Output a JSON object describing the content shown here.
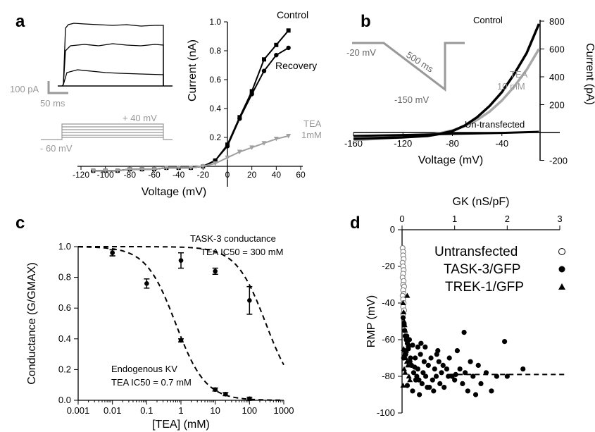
{
  "chart_data": [
    {
      "panel": "a",
      "type": "line",
      "xlabel": "Voltage (mV)",
      "ylabel": "Current (nA)",
      "xlim": [
        -120,
        60
      ],
      "ylim": [
        0,
        1.0
      ],
      "x_ticks": [
        "-120",
        "-100",
        "-80",
        "-60",
        "-40",
        "-20",
        "0",
        "20",
        "40",
        "60"
      ],
      "y_ticks": [
        "0.2",
        "0.4",
        "0.6",
        "0.8",
        "1.0"
      ],
      "series": [
        {
          "name": "Control",
          "x": [
            -110,
            -100,
            -90,
            -80,
            -70,
            -60,
            -50,
            -40,
            -30,
            -20,
            -10,
            0,
            10,
            20,
            30,
            40,
            50
          ],
          "y": [
            -0.03,
            -0.03,
            -0.03,
            -0.02,
            -0.02,
            -0.02,
            -0.01,
            -0.01,
            -0.01,
            0.0,
            0.04,
            0.15,
            0.34,
            0.52,
            0.74,
            0.84,
            0.94
          ]
        },
        {
          "name": "Recovery",
          "x": [
            -110,
            -100,
            -90,
            -80,
            -70,
            -60,
            -50,
            -40,
            -30,
            -20,
            -10,
            0,
            10,
            20,
            30,
            40,
            50
          ],
          "y": [
            -0.03,
            -0.03,
            -0.03,
            -0.02,
            -0.02,
            -0.02,
            -0.01,
            -0.01,
            -0.01,
            0.0,
            0.04,
            0.14,
            0.33,
            0.5,
            0.66,
            0.77,
            0.82
          ]
        },
        {
          "name": "TEA 1mM",
          "x": [
            -110,
            -100,
            -90,
            -80,
            -70,
            -60,
            -50,
            -40,
            -30,
            -20,
            -10,
            0,
            10,
            20,
            30,
            40,
            50
          ],
          "y": [
            -0.03,
            -0.03,
            -0.03,
            -0.02,
            -0.02,
            -0.02,
            -0.01,
            -0.01,
            -0.01,
            0.0,
            0.02,
            0.06,
            0.1,
            0.13,
            0.16,
            0.19,
            0.21
          ]
        }
      ],
      "legend": {
        "control": "Control",
        "recovery": "Recovery",
        "tea1": "TEA",
        "tea2": "1mM"
      },
      "inset": {
        "current_scale": "100 pA",
        "time_scale": "50 ms",
        "voltage_high": "+ 40 mV",
        "voltage_low": "- 60 mV"
      },
      "colors": {
        "control": "#000000",
        "tea": "#a0a0a0"
      }
    },
    {
      "panel": "b",
      "type": "line",
      "xlabel": "Voltage (mV)",
      "ylabel": "Current (pA)",
      "xlim": [
        -160,
        0
      ],
      "ylim": [
        -200,
        800
      ],
      "x_ticks": [
        "-160",
        "-120",
        "-80",
        "-40"
      ],
      "y_ticks": [
        "-200",
        "200",
        "400",
        "600",
        "800"
      ],
      "series": [
        {
          "name": "Control",
          "x": [
            -160,
            -140,
            -120,
            -100,
            -90,
            -80,
            -70,
            -60,
            -50,
            -40,
            -30,
            -20,
            -10
          ],
          "y": [
            -45,
            -40,
            -35,
            -25,
            -10,
            10,
            50,
            110,
            190,
            290,
            420,
            570,
            780
          ]
        },
        {
          "name": "TEA 10 mM",
          "x": [
            -160,
            -140,
            -120,
            -100,
            -90,
            -80,
            -70,
            -60,
            -50,
            -40,
            -30,
            -20,
            -10
          ],
          "y": [
            -55,
            -45,
            -35,
            -20,
            -5,
            15,
            45,
            90,
            150,
            230,
            330,
            450,
            600
          ]
        },
        {
          "name": "Un-transfected",
          "x": [
            -160,
            -120,
            -80,
            -40,
            -10
          ],
          "y": [
            -25,
            -18,
            -10,
            -3,
            5
          ]
        }
      ],
      "legend": {
        "control": "Control",
        "tea1": "TEA",
        "tea2": "10 mM",
        "untransfected": "Un-transfected"
      },
      "inset": {
        "start": "-20 mV",
        "duration": "500 ms",
        "low": "-150 mV"
      }
    },
    {
      "panel": "c",
      "type": "scatter",
      "xlabel": "[TEA] (mM)",
      "ylabel": "Conductance (G/GMAX)",
      "x_scale": "log",
      "xlim": [
        0.001,
        1000
      ],
      "ylim": [
        0,
        1.0
      ],
      "x_ticks": [
        "0.001",
        "0.01",
        "0.1",
        "1",
        "10",
        "100",
        "1000"
      ],
      "y_ticks": [
        "0.0",
        "0.2",
        "0.4",
        "0.6",
        "0.8",
        "1.0"
      ],
      "series": [
        {
          "name": "TASK-3 conductance",
          "ic50": 300,
          "x": [
            0.01,
            1,
            10,
            100
          ],
          "y": [
            0.96,
            0.91,
            0.84,
            0.65
          ],
          "err": [
            0.02,
            0.05,
            0.02,
            0.09
          ]
        },
        {
          "name": "Endogenous KV",
          "ic50": 0.7,
          "x": [
            0.01,
            0.1,
            1,
            10,
            20,
            100
          ],
          "y": [
            0.96,
            0.76,
            0.39,
            0.07,
            0.04,
            0.01
          ],
          "err": [
            0.02,
            0.03,
            0.01,
            0.01,
            0.01,
            0.01
          ]
        }
      ],
      "annotations": {
        "task3_line1": "TASK-3 conductance",
        "task3_line2": "TEA IC50 = 300 mM",
        "kv_line1": "Endogenous KV",
        "kv_line2": "TEA IC50 = 0.7 mM"
      }
    },
    {
      "panel": "d",
      "type": "scatter",
      "xlabel": "GK (nS/pF)",
      "ylabel": "RMP (mV)",
      "xlim": [
        0,
        3
      ],
      "ylim": [
        -100,
        0
      ],
      "x_ticks": [
        "0",
        "1",
        "2",
        "3"
      ],
      "y_ticks": [
        "0",
        "-20",
        "-40",
        "-60",
        "-80",
        "-100"
      ],
      "fit_level": -79,
      "legend": {
        "untransfected": "Untransfected",
        "task3": "TASK-3/GFP",
        "trek1": "TREK-1/GFP"
      },
      "series": [
        {
          "name": "Untransfected",
          "marker": "open-circle",
          "x": [
            0.01,
            0.02,
            0.02,
            0.03,
            0.01,
            0.02,
            0.03,
            0.02,
            0.01,
            0.03,
            0.02,
            0.04,
            0.02,
            0.03,
            0.01,
            0.02,
            0.03,
            0.02,
            0.04,
            0.02
          ],
          "y": [
            -10,
            -12,
            -14,
            -16,
            -18,
            -20,
            -22,
            -24,
            -26,
            -28,
            -30,
            -31,
            -33,
            -35,
            -36,
            -38,
            -40,
            -42,
            -44,
            -46
          ]
        },
        {
          "name": "TASK-3/GFP",
          "marker": "filled-circle",
          "x": [
            0.02,
            0.04,
            0.05,
            0.06,
            0.08,
            0.1,
            0.12,
            0.05,
            0.03,
            0.07,
            0.15,
            0.18,
            0.2,
            0.22,
            0.25,
            0.28,
            0.3,
            0.32,
            0.35,
            0.38,
            0.4,
            0.42,
            0.45,
            0.48,
            0.5,
            0.55,
            0.58,
            0.6,
            0.62,
            0.65,
            0.7,
            0.72,
            0.75,
            0.8,
            0.85,
            0.9,
            0.95,
            1.0,
            1.05,
            1.1,
            1.15,
            1.2,
            1.25,
            1.3,
            1.35,
            1.4,
            1.5,
            1.6,
            1.7,
            1.8,
            1.95,
            2.3,
            0.1,
            0.14,
            0.2,
            0.26,
            0.33,
            0.44,
            0.52,
            0.66,
            0.78,
            0.88,
            1.02,
            1.18,
            0.06,
            0.09,
            0.12,
            0.16,
            0.24,
            0.36,
            2.0,
            1.45,
            0.68,
            0.3
          ],
          "y": [
            -48,
            -52,
            -55,
            -58,
            -60,
            -62,
            -65,
            -66,
            -70,
            -68,
            -72,
            -74,
            -63,
            -78,
            -70,
            -80,
            -76,
            -82,
            -68,
            -84,
            -78,
            -72,
            -80,
            -86,
            -74,
            -70,
            -82,
            -88,
            -76,
            -80,
            -72,
            -84,
            -78,
            -86,
            -76,
            -70,
            -80,
            -82,
            -66,
            -76,
            -84,
            -78,
            -88,
            -72,
            -80,
            -90,
            -84,
            -78,
            -88,
            -80,
            -61,
            -76,
            -85,
            -60,
            -88,
            -82,
            -90,
            -64,
            -86,
            -68,
            -74,
            -80,
            -79,
            -56,
            -68,
            -58,
            -64,
            -70,
            -75,
            -62,
            -80,
            -74,
            -66,
            -64
          ]
        },
        {
          "name": "TREK-1/GFP",
          "marker": "filled-triangle",
          "x": [
            0.02,
            0.03,
            0.04,
            0.05,
            0.06,
            0.08,
            0.1,
            0.12,
            0.03,
            0.05,
            0.07,
            0.09,
            0.11,
            0.04,
            0.06,
            0.13,
            0.15,
            0.02,
            0.08,
            0.1
          ],
          "y": [
            -40,
            -45,
            -50,
            -52,
            -55,
            -58,
            -60,
            -62,
            -65,
            -68,
            -70,
            -72,
            -74,
            -76,
            -78,
            -80,
            -82,
            -85,
            -66,
            -36
          ]
        }
      ]
    }
  ],
  "panel_labels": [
    "a",
    "b",
    "c",
    "d"
  ]
}
